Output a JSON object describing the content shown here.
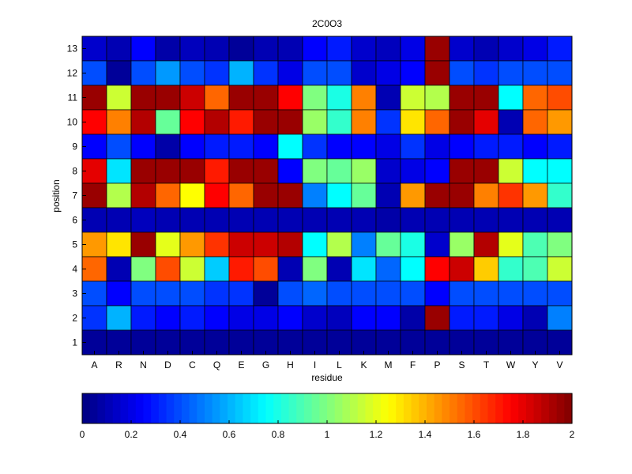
{
  "chart_data": {
    "type": "heatmap",
    "title": "2C0O3",
    "xlabel": "residue",
    "ylabel": "position",
    "x_categories": [
      "A",
      "R",
      "N",
      "D",
      "C",
      "Q",
      "E",
      "G",
      "H",
      "I",
      "L",
      "K",
      "M",
      "F",
      "P",
      "S",
      "T",
      "W",
      "Y",
      "V"
    ],
    "y_categories": [
      "13",
      "12",
      "11",
      "10",
      "9",
      "8",
      "7",
      "6",
      "5",
      "4",
      "3",
      "2",
      "1"
    ],
    "values": [
      [
        0.15,
        0.1,
        0.25,
        0.08,
        0.12,
        0.1,
        0.05,
        0.1,
        0.1,
        0.25,
        0.3,
        0.15,
        0.12,
        0.2,
        1.95,
        0.15,
        0.1,
        0.15,
        0.2,
        0.3
      ],
      [
        0.4,
        0.05,
        0.4,
        0.55,
        0.4,
        0.35,
        0.6,
        0.35,
        0.2,
        0.4,
        0.4,
        0.15,
        0.2,
        0.25,
        1.95,
        0.4,
        0.35,
        0.4,
        0.4,
        0.4
      ],
      [
        1.95,
        1.15,
        1.95,
        1.95,
        1.85,
        1.55,
        1.95,
        1.95,
        1.75,
        1.0,
        0.8,
        1.5,
        0.1,
        1.15,
        1.1,
        1.95,
        1.95,
        0.75,
        1.55,
        1.6
      ],
      [
        1.75,
        1.5,
        1.9,
        0.95,
        1.75,
        1.9,
        1.7,
        1.95,
        1.95,
        1.05,
        0.85,
        1.5,
        0.35,
        1.3,
        1.55,
        1.95,
        1.8,
        0.1,
        1.55,
        1.45
      ],
      [
        0.25,
        0.4,
        0.25,
        0.08,
        0.25,
        0.3,
        0.3,
        0.25,
        0.75,
        0.35,
        0.25,
        0.25,
        0.2,
        0.35,
        0.2,
        0.25,
        0.3,
        0.3,
        0.25,
        0.3
      ],
      [
        1.8,
        0.7,
        1.95,
        1.95,
        1.95,
        1.7,
        1.95,
        1.95,
        0.25,
        1.0,
        0.95,
        1.05,
        0.15,
        0.2,
        0.25,
        1.95,
        1.95,
        1.15,
        0.75,
        0.75
      ],
      [
        1.95,
        1.1,
        1.9,
        1.55,
        1.25,
        1.75,
        1.55,
        1.95,
        1.95,
        0.5,
        0.75,
        0.95,
        0.1,
        1.45,
        1.95,
        1.95,
        1.5,
        1.65,
        1.45,
        0.85
      ],
      [
        0.1,
        0.1,
        0.12,
        0.1,
        0.1,
        0.1,
        0.1,
        0.1,
        0.1,
        0.1,
        0.1,
        0.1,
        0.08,
        0.1,
        0.1,
        0.1,
        0.1,
        0.1,
        0.1,
        0.1
      ],
      [
        1.45,
        1.3,
        1.95,
        1.2,
        1.45,
        1.65,
        1.85,
        1.85,
        1.9,
        0.75,
        1.1,
        0.5,
        0.95,
        0.8,
        0.15,
        1.05,
        1.9,
        1.2,
        0.9,
        1.0
      ],
      [
        1.55,
        0.1,
        1.0,
        1.6,
        1.15,
        0.65,
        1.7,
        1.6,
        0.1,
        1.0,
        0.1,
        0.7,
        0.45,
        0.75,
        1.75,
        1.85,
        1.35,
        0.85,
        0.9,
        1.15
      ],
      [
        0.4,
        0.25,
        0.4,
        0.4,
        0.4,
        0.35,
        0.35,
        0.05,
        0.4,
        0.45,
        0.4,
        0.4,
        0.4,
        0.4,
        0.25,
        0.4,
        0.4,
        0.4,
        0.4,
        0.4
      ],
      [
        0.35,
        0.6,
        0.3,
        0.25,
        0.3,
        0.25,
        0.2,
        0.2,
        0.25,
        0.15,
        0.12,
        0.25,
        0.25,
        0.08,
        1.95,
        0.3,
        0.3,
        0.2,
        0.1,
        0.5
      ],
      [
        0.05,
        0.05,
        0.05,
        0.05,
        0.05,
        0.05,
        0.05,
        0.05,
        0.05,
        0.05,
        0.05,
        0.05,
        0.05,
        0.05,
        0.05,
        0.05,
        0.05,
        0.05,
        0.05,
        0.05
      ]
    ],
    "colorscale": "jet",
    "colorbar": {
      "range": [
        0,
        2
      ],
      "ticks": [
        "0",
        "0.2",
        "0.4",
        "0.6",
        "0.8",
        "1",
        "1.2",
        "1.4",
        "1.6",
        "1.8",
        "2"
      ],
      "placement": "bottom"
    },
    "grid": false
  }
}
